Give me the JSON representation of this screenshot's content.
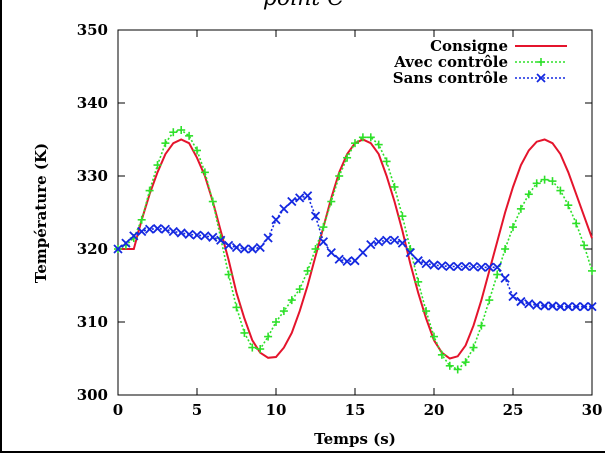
{
  "header_text": "point C",
  "chart_data": {
    "type": "line",
    "xlabel": "Temps (s)",
    "ylabel": "Température (K)",
    "xlim": [
      0,
      30
    ],
    "ylim": [
      300,
      350
    ],
    "xticks": [
      0,
      5,
      10,
      15,
      20,
      25,
      30
    ],
    "yticks": [
      300,
      310,
      320,
      330,
      340,
      350
    ],
    "grid": false,
    "legend_position": "top-right",
    "series": [
      {
        "name": "Consigne",
        "color": "#e4142c",
        "style": "solid",
        "marker": "none",
        "points": [
          [
            0,
            320
          ],
          [
            1,
            320
          ],
          [
            1.5,
            324
          ],
          [
            2,
            327.5
          ],
          [
            2.5,
            330.5
          ],
          [
            3,
            333
          ],
          [
            3.5,
            334.5
          ],
          [
            4,
            335
          ],
          [
            4.5,
            334.5
          ],
          [
            5,
            332.5
          ],
          [
            5.5,
            330
          ],
          [
            6,
            326.5
          ],
          [
            6.5,
            322.5
          ],
          [
            7,
            318.5
          ],
          [
            7.5,
            314
          ],
          [
            8,
            310.5
          ],
          [
            8.5,
            307.5
          ],
          [
            9,
            305.8
          ],
          [
            9.5,
            305.1
          ],
          [
            10,
            305.2
          ],
          [
            10.5,
            306.5
          ],
          [
            11,
            308.5
          ],
          [
            11.5,
            311.5
          ],
          [
            12,
            315
          ],
          [
            12.5,
            319
          ],
          [
            13,
            323
          ],
          [
            13.5,
            327
          ],
          [
            14,
            330.5
          ],
          [
            14.5,
            333
          ],
          [
            15,
            334.5
          ],
          [
            15.5,
            335
          ],
          [
            16,
            334.5
          ],
          [
            16.5,
            333
          ],
          [
            17,
            330
          ],
          [
            17.5,
            326.5
          ],
          [
            18,
            322.5
          ],
          [
            18.5,
            318
          ],
          [
            19,
            314
          ],
          [
            19.5,
            310.5
          ],
          [
            20,
            307.5
          ],
          [
            20.5,
            305.8
          ],
          [
            21,
            305
          ],
          [
            21.5,
            305.3
          ],
          [
            22,
            306.8
          ],
          [
            22.5,
            309.5
          ],
          [
            23,
            313
          ],
          [
            23.5,
            317
          ],
          [
            24,
            321
          ],
          [
            24.5,
            325
          ],
          [
            25,
            328.5
          ],
          [
            25.5,
            331.5
          ],
          [
            26,
            333.5
          ],
          [
            26.5,
            334.7
          ],
          [
            27,
            335
          ],
          [
            27.5,
            334.5
          ],
          [
            28,
            333
          ],
          [
            28.5,
            330.5
          ],
          [
            29,
            327.5
          ],
          [
            29.5,
            324.5
          ],
          [
            30,
            321.5
          ]
        ]
      },
      {
        "name": "Avec contrôle",
        "color": "#2ee02a",
        "style": "dotted",
        "marker": "+",
        "points": [
          [
            0,
            320
          ],
          [
            0.5,
            320.5
          ],
          [
            1,
            321.5
          ],
          [
            1.5,
            324
          ],
          [
            2,
            328
          ],
          [
            2.5,
            331.5
          ],
          [
            3,
            334.5
          ],
          [
            3.5,
            336
          ],
          [
            4,
            336.3
          ],
          [
            4.5,
            335.5
          ],
          [
            5,
            333.5
          ],
          [
            5.5,
            330.5
          ],
          [
            6,
            326.5
          ],
          [
            6.5,
            321.5
          ],
          [
            7,
            316.5
          ],
          [
            7.5,
            312
          ],
          [
            8,
            308.5
          ],
          [
            8.5,
            306.5
          ],
          [
            9,
            306.3
          ],
          [
            9.5,
            308
          ],
          [
            10,
            310
          ],
          [
            10.5,
            311.5
          ],
          [
            11,
            313
          ],
          [
            11.5,
            314.5
          ],
          [
            12,
            317
          ],
          [
            12.5,
            320
          ],
          [
            13,
            323
          ],
          [
            13.5,
            326.5
          ],
          [
            14,
            330
          ],
          [
            14.5,
            332.5
          ],
          [
            15,
            334.5
          ],
          [
            15.5,
            335.3
          ],
          [
            16,
            335.3
          ],
          [
            16.5,
            334.3
          ],
          [
            17,
            332
          ],
          [
            17.5,
            328.5
          ],
          [
            18,
            324.5
          ],
          [
            18.5,
            320
          ],
          [
            19,
            315.5
          ],
          [
            19.5,
            311.5
          ],
          [
            20,
            308
          ],
          [
            20.5,
            305.5
          ],
          [
            21,
            304
          ],
          [
            21.5,
            303.5
          ],
          [
            22,
            304.5
          ],
          [
            22.5,
            306.5
          ],
          [
            23,
            309.5
          ],
          [
            23.5,
            313
          ],
          [
            24,
            316.5
          ],
          [
            24.5,
            320
          ],
          [
            25,
            323
          ],
          [
            25.5,
            325.5
          ],
          [
            26,
            327.5
          ],
          [
            26.5,
            329
          ],
          [
            27,
            329.5
          ],
          [
            27.5,
            329.3
          ],
          [
            28,
            328
          ],
          [
            28.5,
            326
          ],
          [
            29,
            323.5
          ],
          [
            29.5,
            320.5
          ],
          [
            30,
            317
          ]
        ]
      },
      {
        "name": "Sans contrôle",
        "color": "#1428e0",
        "style": "dotted",
        "marker": "x",
        "points": [
          [
            0,
            320
          ],
          [
            0.5,
            320.8
          ],
          [
            1,
            321.8
          ],
          [
            1.5,
            322.4
          ],
          [
            2,
            322.7
          ],
          [
            2.5,
            322.8
          ],
          [
            3,
            322.7
          ],
          [
            3.5,
            322.4
          ],
          [
            4,
            322.2
          ],
          [
            4.5,
            322
          ],
          [
            5,
            321.9
          ],
          [
            5.5,
            321.8
          ],
          [
            6,
            321.6
          ],
          [
            6.5,
            321.2
          ],
          [
            7,
            320.5
          ],
          [
            7.5,
            320.2
          ],
          [
            8,
            320
          ],
          [
            8.5,
            320
          ],
          [
            9,
            320.2
          ],
          [
            9.5,
            321.5
          ],
          [
            10,
            324
          ],
          [
            10.5,
            325.5
          ],
          [
            11,
            326.5
          ],
          [
            11.5,
            327
          ],
          [
            12,
            327.3
          ],
          [
            12.5,
            324.5
          ],
          [
            13,
            321
          ],
          [
            13.5,
            319.5
          ],
          [
            14,
            318.6
          ],
          [
            14.5,
            318.3
          ],
          [
            15,
            318.4
          ],
          [
            15.5,
            319.5
          ],
          [
            16,
            320.6
          ],
          [
            16.5,
            321
          ],
          [
            17,
            321.2
          ],
          [
            17.5,
            321.2
          ],
          [
            18,
            320.8
          ],
          [
            18.5,
            319.5
          ],
          [
            19,
            318.4
          ],
          [
            19.5,
            318
          ],
          [
            20,
            317.8
          ],
          [
            20.5,
            317.7
          ],
          [
            21,
            317.6
          ],
          [
            21.5,
            317.6
          ],
          [
            22,
            317.6
          ],
          [
            22.5,
            317.6
          ],
          [
            23,
            317.5
          ],
          [
            23.5,
            317.5
          ],
          [
            24,
            317.5
          ],
          [
            24.5,
            316
          ],
          [
            25,
            313.5
          ],
          [
            25.5,
            312.8
          ],
          [
            26,
            312.5
          ],
          [
            26.5,
            312.3
          ],
          [
            27,
            312.2
          ],
          [
            27.5,
            312.2
          ],
          [
            28,
            312.1
          ],
          [
            28.5,
            312.1
          ],
          [
            29,
            312.1
          ],
          [
            29.5,
            312.1
          ],
          [
            30,
            312.1
          ]
        ]
      }
    ]
  }
}
